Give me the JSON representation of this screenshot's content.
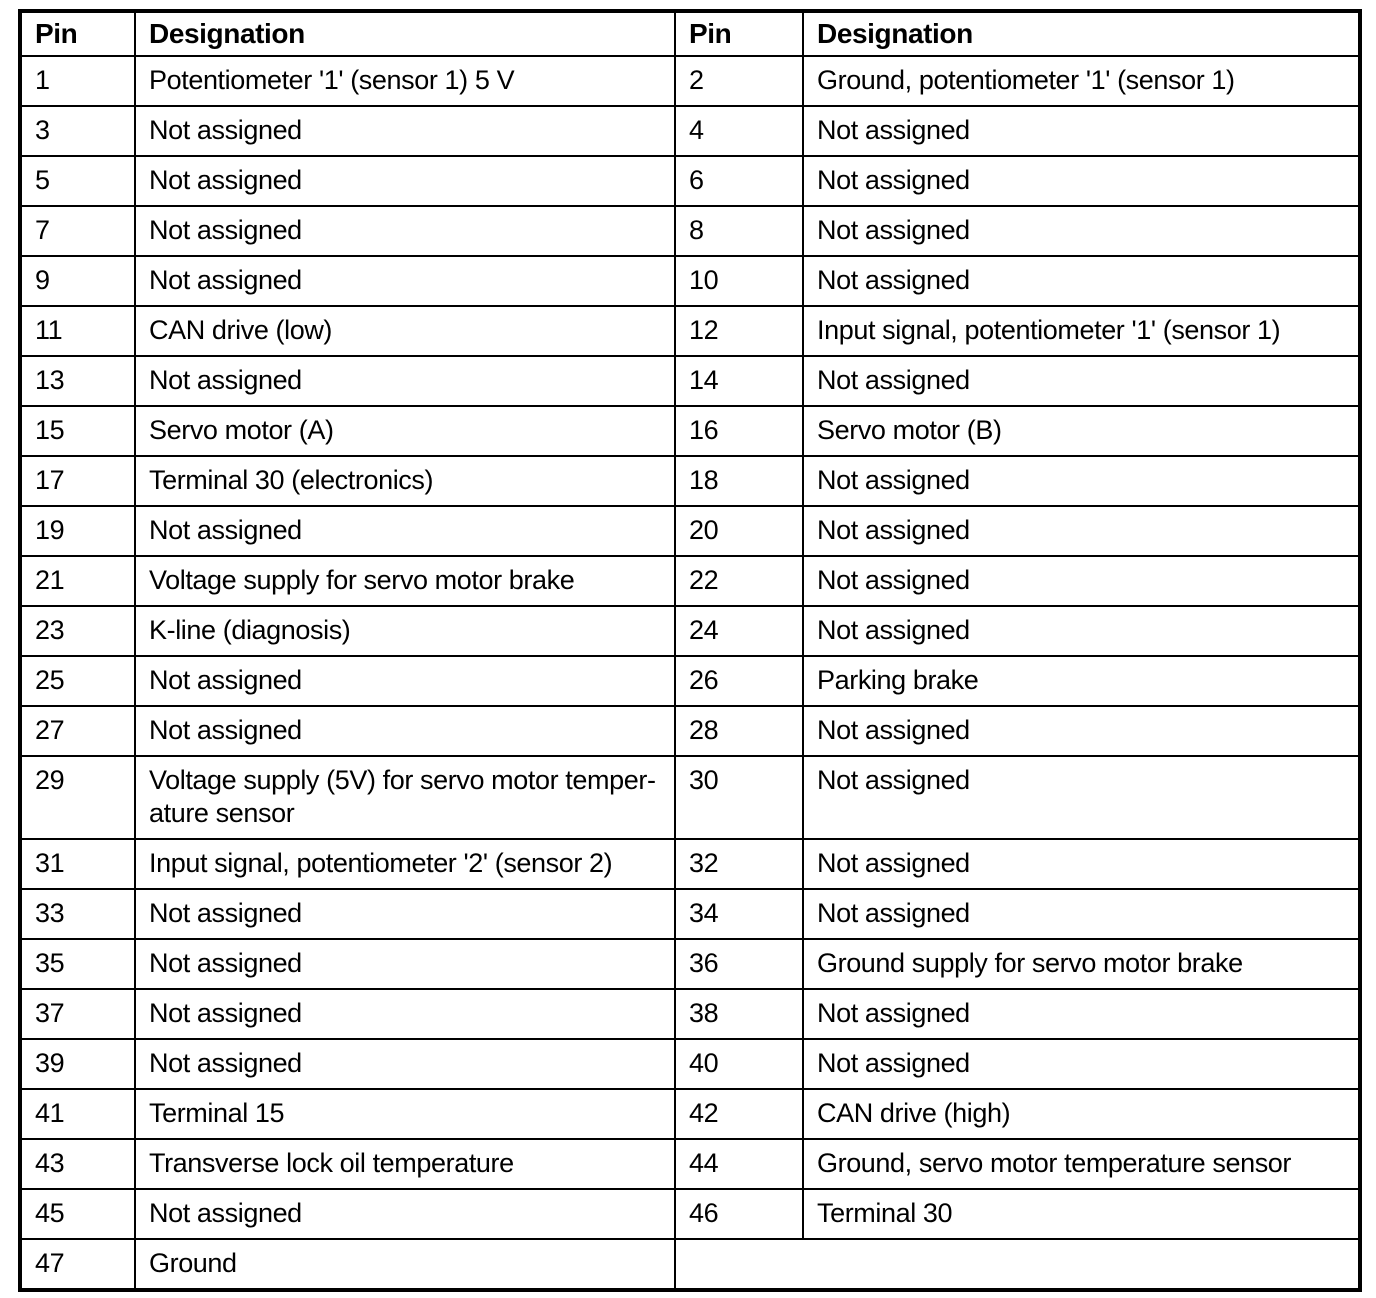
{
  "table": {
    "headers": [
      "Pin",
      "Designation",
      "Pin",
      "Designation"
    ],
    "rows": [
      [
        "1",
        "Potentiometer '1' (sensor 1) 5 V",
        "2",
        "Ground, potentiometer '1' (sensor 1)"
      ],
      [
        "3",
        "Not assigned",
        "4",
        "Not assigned"
      ],
      [
        "5",
        "Not assigned",
        "6",
        "Not assigned"
      ],
      [
        "7",
        "Not assigned",
        "8",
        "Not assigned"
      ],
      [
        "9",
        "Not assigned",
        "10",
        "Not assigned"
      ],
      [
        "11",
        "CAN drive (low)",
        "12",
        "Input signal, potentiometer '1' (sensor 1)"
      ],
      [
        "13",
        "Not assigned",
        "14",
        "Not assigned"
      ],
      [
        "15",
        "Servo motor (A)",
        "16",
        "Servo motor (B)"
      ],
      [
        "17",
        "Terminal 30 (electronics)",
        "18",
        "Not assigned"
      ],
      [
        "19",
        "Not assigned",
        "20",
        "Not assigned"
      ],
      [
        "21",
        "Voltage supply for servo motor brake",
        "22",
        "Not assigned"
      ],
      [
        "23",
        "K-line (diagnosis)",
        "24",
        "Not assigned"
      ],
      [
        "25",
        "Not assigned",
        "26",
        "Parking brake"
      ],
      [
        "27",
        "Not assigned",
        "28",
        "Not assigned"
      ],
      [
        "29",
        "Voltage supply (5V) for servo motor temper­ature sensor",
        "30",
        "Not assigned"
      ],
      [
        "31",
        "Input signal, potentiometer '2' (sensor 2)",
        "32",
        "Not assigned"
      ],
      [
        "33",
        "Not assigned",
        "34",
        "Not assigned"
      ],
      [
        "35",
        "Not assigned",
        "36",
        "Ground supply for servo motor brake"
      ],
      [
        "37",
        "Not assigned",
        "38",
        "Not assigned"
      ],
      [
        "39",
        "Not assigned",
        "40",
        "Not assigned"
      ],
      [
        "41",
        "Terminal 15",
        "42",
        "CAN drive (high)"
      ],
      [
        "43",
        "Transverse lock oil temperature",
        "44",
        "Ground, servo motor temperature sensor"
      ],
      [
        "45",
        "Not assigned",
        "46",
        "Terminal 30"
      ],
      [
        "47",
        "Ground",
        null,
        null
      ]
    ],
    "colors": {
      "border": "#000000",
      "text": "#000000",
      "background": "#ffffff"
    }
  }
}
